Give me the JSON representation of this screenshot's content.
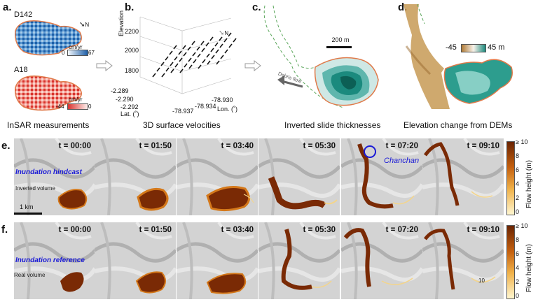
{
  "panels": {
    "a": {
      "label": "a.",
      "caption": "InSAR measurements",
      "map1": {
        "name": "D142",
        "unit": "cm/yr",
        "min": "0",
        "max": "67"
      },
      "map2": {
        "name": "A18",
        "unit": "cm/yr",
        "min": "-44",
        "max": "0"
      },
      "north": "N"
    },
    "b": {
      "label": "b.",
      "caption": "3D surface velocities",
      "zlabel": "Elevation",
      "zticks": [
        "2200",
        "2000",
        "1800"
      ],
      "lat_label": "Lat. (˚)",
      "lat_ticks": [
        "-2.289",
        "-2.290",
        "-2.292"
      ],
      "lon_label": "Lon. (˚)",
      "lon_ticks": [
        "-78.930",
        "-78.934",
        "-78.937"
      ],
      "north": "N"
    },
    "c": {
      "label": "c.",
      "caption": "Inverted slide thicknesses",
      "scalebar": "200 m",
      "arrow_text": "Debris flow"
    },
    "d": {
      "label": "d.",
      "caption": "Elevation change from DEMs",
      "min": "-45",
      "max": "45 m"
    },
    "e": {
      "label": "e.",
      "title": "Inundation hindcast",
      "volume_note": "Inverted volume",
      "scalebar": "1 km",
      "place": "Chanchan",
      "times": [
        "t = 00:00",
        "t = 01:50",
        "t = 03:40",
        "t = 05:30",
        "t = 07:20",
        "t = 09:10"
      ]
    },
    "f": {
      "label": "f.",
      "title": "Inundation reference",
      "volume_note": "Real volume",
      "inline_value": "10",
      "times": [
        "t = 00:00",
        "t = 01:50",
        "t = 03:40",
        "t = 05:30",
        "t = 07:20",
        "t = 09:10"
      ]
    },
    "colorbar": {
      "label": "Flow height (m)",
      "ticks": [
        "≥ 10",
        "8",
        "6",
        "4",
        "2",
        "0"
      ]
    }
  },
  "colors": {
    "flow_dark": "#7a2a05",
    "flow_mid": "#d4781a",
    "flow_light": "#f4d58a",
    "outline": "#e07a4a",
    "blue": "#2a6fb8",
    "red": "#d9332e",
    "teal": "#1c8a7e",
    "tan": "#c79a55"
  }
}
